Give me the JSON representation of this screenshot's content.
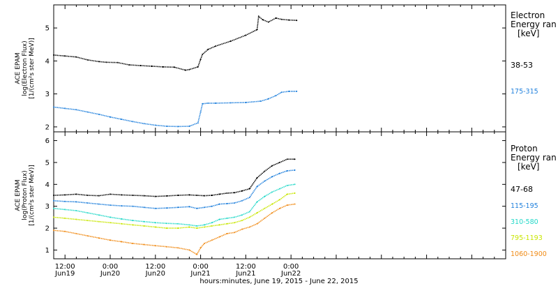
{
  "colors": {
    "black": "#000000",
    "blue": "#1e7fdc",
    "cyan": "#22d8c8",
    "yellow": "#c8e600",
    "orange": "#f08a14"
  },
  "footer": {
    "xlabel": "hours:minutes, June 19, 2015 - June 22, 2015"
  },
  "chart_data": [
    {
      "type": "scatter",
      "panel": "electron",
      "ylabel": [
        "ACE EPAM",
        "log(Electron Flux)",
        "[1/(cm²s ster MeV)]"
      ],
      "legend_title": [
        "Electron",
        "Energy ran",
        "[keV]"
      ],
      "ylim": [
        1.85,
        5.7
      ],
      "yticks": [
        2,
        3,
        4,
        5
      ],
      "xlim_hours": [
        -3,
        117
      ],
      "xticks": [
        {
          "h": 0,
          "label": "12:00",
          "sub": "Jun19"
        },
        {
          "h": 12,
          "label": "0:00",
          "sub": "Jun20"
        },
        {
          "h": 24,
          "label": "12:00",
          "sub": "Jun20"
        },
        {
          "h": 36,
          "label": "0:00",
          "sub": "Jun21"
        },
        {
          "h": 48,
          "label": "12:00",
          "sub": "Jun21"
        },
        {
          "h": 60,
          "label": "0:00",
          "sub": "Jun22"
        }
      ],
      "series": [
        {
          "name": "38-53",
          "color": "#000000",
          "x": [
            -3,
            0,
            3,
            6,
            9,
            11,
            14,
            17,
            20,
            23,
            26,
            29,
            32,
            33,
            35.3,
            36,
            36.5,
            38,
            40,
            44,
            48,
            51,
            51.4,
            52.5,
            54,
            56,
            57.5,
            59.5,
            61.5
          ],
          "y": [
            4.18,
            4.15,
            4.12,
            4.03,
            3.98,
            3.96,
            3.95,
            3.88,
            3.86,
            3.84,
            3.82,
            3.81,
            3.72,
            3.74,
            3.82,
            4.05,
            4.2,
            4.35,
            4.45,
            4.6,
            4.78,
            4.95,
            5.35,
            5.25,
            5.18,
            5.3,
            5.26,
            5.24,
            5.23
          ]
        },
        {
          "name": "175-315",
          "color": "#1e7fdc",
          "x": [
            -3,
            0,
            3,
            6,
            9,
            12,
            15,
            18,
            21,
            24,
            27,
            30,
            33,
            35.3,
            36,
            36.5,
            38,
            40,
            44,
            48,
            52,
            54,
            56,
            57.5,
            59.5,
            61.5
          ],
          "y": [
            2.6,
            2.56,
            2.52,
            2.45,
            2.38,
            2.3,
            2.23,
            2.16,
            2.1,
            2.05,
            2.02,
            2.01,
            2.02,
            2.12,
            2.45,
            2.7,
            2.72,
            2.72,
            2.73,
            2.74,
            2.78,
            2.85,
            2.95,
            3.05,
            3.08,
            3.08
          ]
        }
      ]
    },
    {
      "type": "scatter",
      "panel": "proton",
      "ylabel": [
        "ACE EPAM",
        "log(Proton Flux)",
        "[1/(cm²s ster MeV)]"
      ],
      "legend_title": [
        "Proton",
        "Energy ran",
        "[keV]"
      ],
      "ylim": [
        0.6,
        6.4
      ],
      "yticks": [
        1,
        2,
        3,
        4,
        5,
        6
      ],
      "xlim_hours": [
        -3,
        117
      ],
      "series": [
        {
          "name": "47-68",
          "color": "#000000",
          "x": [
            -3,
            0,
            3,
            6,
            9,
            12,
            15,
            18,
            21,
            24,
            27,
            30,
            33,
            35,
            37,
            39,
            41,
            43,
            45,
            47,
            49,
            51,
            53,
            55,
            57,
            59,
            61
          ],
          "y": [
            3.5,
            3.52,
            3.55,
            3.5,
            3.48,
            3.55,
            3.52,
            3.5,
            3.48,
            3.45,
            3.47,
            3.5,
            3.52,
            3.5,
            3.48,
            3.5,
            3.55,
            3.6,
            3.62,
            3.7,
            3.8,
            4.3,
            4.6,
            4.85,
            5.0,
            5.15,
            5.15
          ]
        },
        {
          "name": "115-195",
          "color": "#1e7fdc",
          "x": [
            -3,
            0,
            3,
            6,
            9,
            12,
            15,
            18,
            21,
            24,
            27,
            30,
            33,
            35,
            37,
            39,
            41,
            43,
            45,
            47,
            49,
            51,
            53,
            55,
            57,
            59,
            61
          ],
          "y": [
            3.25,
            3.22,
            3.2,
            3.15,
            3.1,
            3.05,
            3.02,
            3.0,
            2.95,
            2.9,
            2.92,
            2.95,
            2.98,
            2.9,
            2.95,
            3.0,
            3.1,
            3.12,
            3.15,
            3.25,
            3.4,
            3.9,
            4.15,
            4.35,
            4.5,
            4.62,
            4.65
          ]
        },
        {
          "name": "310-580",
          "color": "#22d8c8",
          "x": [
            -3,
            0,
            3,
            6,
            9,
            12,
            15,
            18,
            21,
            24,
            27,
            30,
            33,
            35,
            37,
            39,
            41,
            43,
            45,
            47,
            49,
            51,
            53,
            55,
            57,
            59,
            61
          ],
          "y": [
            2.9,
            2.85,
            2.8,
            2.7,
            2.6,
            2.5,
            2.42,
            2.35,
            2.3,
            2.25,
            2.22,
            2.2,
            2.15,
            2.1,
            2.15,
            2.25,
            2.4,
            2.45,
            2.5,
            2.6,
            2.75,
            3.2,
            3.45,
            3.65,
            3.8,
            3.95,
            4.0
          ]
        },
        {
          "name": "795-1193",
          "color": "#c8e600",
          "x": [
            -3,
            0,
            3,
            6,
            9,
            12,
            15,
            18,
            21,
            24,
            27,
            30,
            33,
            35,
            37,
            39,
            41,
            43,
            45,
            47,
            49,
            51,
            53,
            55,
            57,
            59,
            61
          ],
          "y": [
            2.5,
            2.45,
            2.4,
            2.35,
            2.3,
            2.25,
            2.2,
            2.15,
            2.1,
            2.05,
            2.0,
            2.0,
            2.05,
            2.0,
            2.05,
            2.1,
            2.15,
            2.2,
            2.25,
            2.35,
            2.5,
            2.7,
            2.9,
            3.1,
            3.3,
            3.55,
            3.6
          ]
        },
        {
          "name": "1060-1900",
          "color": "#f08a14",
          "x": [
            -3,
            0,
            3,
            6,
            9,
            12,
            15,
            18,
            21,
            24,
            27,
            30,
            33,
            35,
            36,
            37,
            39,
            41,
            43,
            45,
            47,
            49,
            51,
            53,
            55,
            57,
            59,
            61
          ],
          "y": [
            1.9,
            1.85,
            1.75,
            1.65,
            1.55,
            1.45,
            1.38,
            1.3,
            1.25,
            1.2,
            1.15,
            1.1,
            1.0,
            0.8,
            1.1,
            1.3,
            1.45,
            1.6,
            1.75,
            1.8,
            1.95,
            2.05,
            2.2,
            2.45,
            2.7,
            2.9,
            3.05,
            3.1
          ]
        }
      ]
    }
  ]
}
